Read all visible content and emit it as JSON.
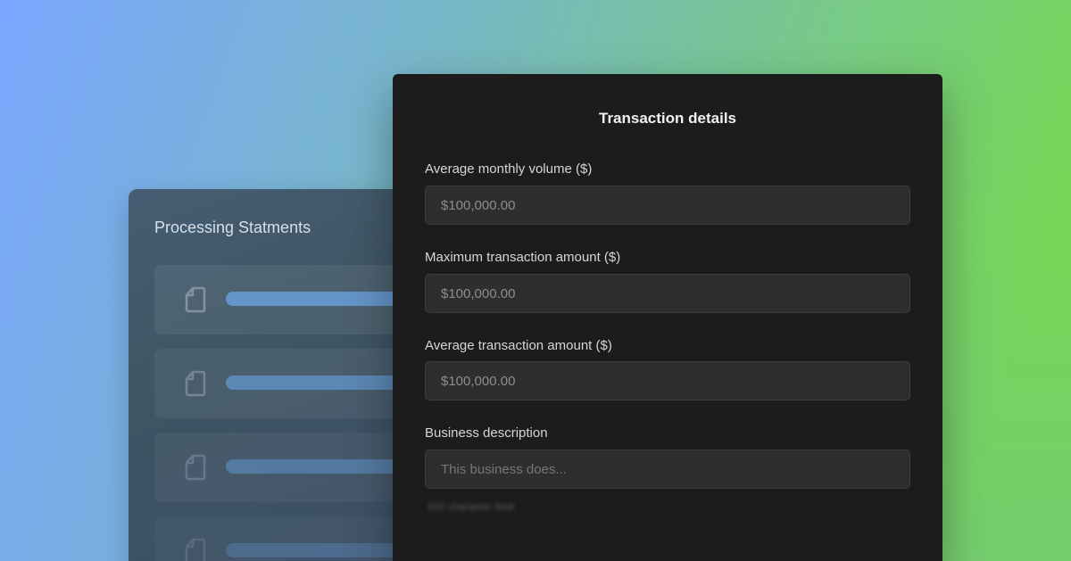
{
  "statements_card": {
    "title": "Processing Statments",
    "rows": [
      {
        "progress": 1
      },
      {
        "progress": 1
      },
      {
        "progress": 1
      },
      {
        "progress": 1
      }
    ]
  },
  "transaction_card": {
    "title": "Transaction details",
    "fields": [
      {
        "label": "Average monthly volume ($)",
        "value": "$100,000.00"
      },
      {
        "label": "Maximum transaction amount ($)",
        "value": "$100,000.00"
      },
      {
        "label": "Average transaction amount ($)",
        "value": "$100,000.00"
      },
      {
        "label": "Business description",
        "placeholder": "This business does..."
      }
    ],
    "hint": "100 character limit"
  }
}
